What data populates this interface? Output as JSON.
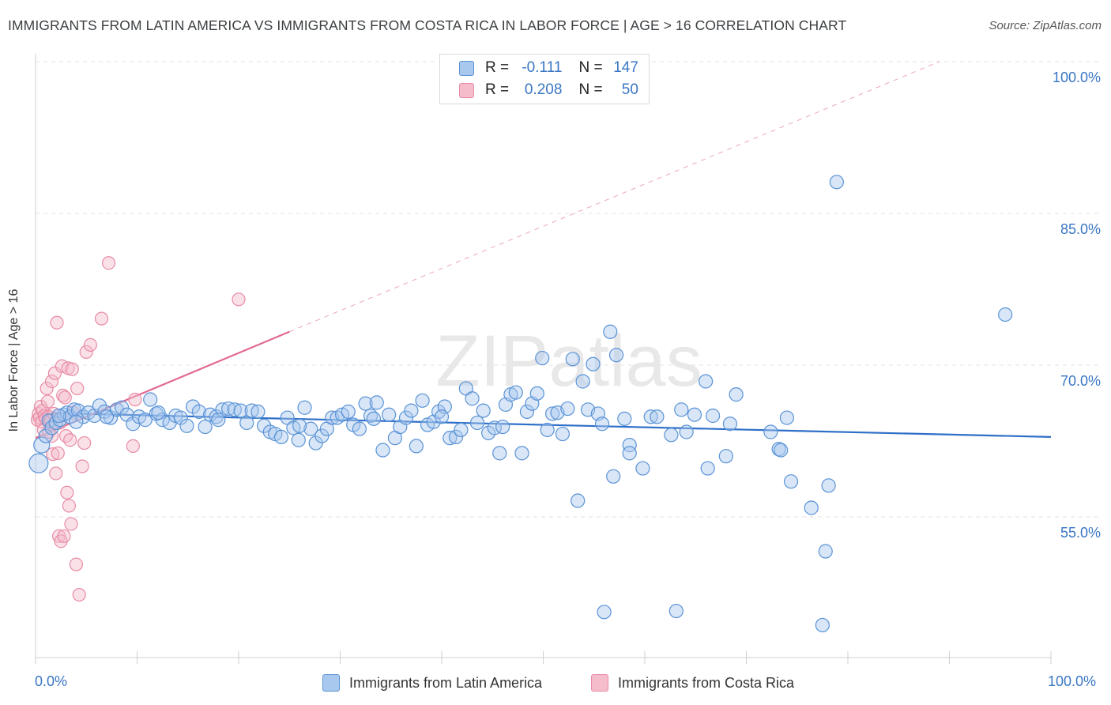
{
  "title": "IMMIGRANTS FROM LATIN AMERICA VS IMMIGRANTS FROM COSTA RICA IN LABOR FORCE | AGE > 16 CORRELATION CHART",
  "source": "Source: ZipAtlas.com",
  "watermark": "ZIPatlas",
  "colors": {
    "blue_fill": "#a9c8ee",
    "blue_stroke": "#5a93d6",
    "blue_line": "#2f6fc8",
    "pink_fill": "#f5bccb",
    "pink_stroke": "#e88ba4",
    "pink_line": "#e06a90",
    "axis_text": "#3a76c4",
    "grid": "#e3e3e3"
  },
  "legend": {
    "series1": {
      "r_label": "R =",
      "r_value": "-0.111",
      "n_label": "N =",
      "n_value": "147"
    },
    "series2": {
      "r_label": "R =",
      "r_value": "0.208",
      "n_label": "N =",
      "n_value": "50"
    }
  },
  "chart_data": {
    "type": "scatter",
    "title": "IMMIGRANTS FROM LATIN AMERICA VS IMMIGRANTS FROM COSTA RICA IN LABOR FORCE | AGE > 16 CORRELATION CHART",
    "xlabel": "",
    "ylabel": "In Labor Force | Age > 16",
    "xlim": [
      0,
      100
    ],
    "ylim": [
      40,
      102
    ],
    "x_tick_labels": [
      "0.0%",
      "100.0%"
    ],
    "y_ticks": [
      55,
      70,
      85,
      100
    ],
    "y_tick_labels": [
      "55.0%",
      "70.0%",
      "85.0%",
      "100.0%"
    ],
    "grid": true,
    "series": [
      {
        "name": "Immigrants from Latin America",
        "color": "blue",
        "trend": {
          "x": [
            0,
            100
          ],
          "y": [
            65.3,
            62.9
          ],
          "dashed_extension": false
        },
        "points": [
          [
            0.3,
            60.3
          ],
          [
            0.6,
            62.1
          ],
          [
            1.0,
            63.0
          ],
          [
            1.3,
            64.5
          ],
          [
            1.6,
            63.8
          ],
          [
            2.0,
            64.3
          ],
          [
            2.4,
            64.6
          ],
          [
            2.8,
            65.1
          ],
          [
            3.1,
            65.3
          ],
          [
            3.4,
            64.9
          ],
          [
            3.8,
            65.6
          ],
          [
            4.2,
            65.5
          ],
          [
            4.7,
            64.9
          ],
          [
            5.2,
            65.3
          ],
          [
            5.8,
            65.0
          ],
          [
            6.3,
            66.0
          ],
          [
            6.8,
            65.4
          ],
          [
            7.4,
            64.8
          ],
          [
            8.0,
            65.6
          ],
          [
            8.5,
            65.8
          ],
          [
            9.0,
            65.1
          ],
          [
            9.6,
            64.2
          ],
          [
            10.2,
            64.9
          ],
          [
            10.8,
            64.6
          ],
          [
            11.3,
            66.6
          ],
          [
            11.9,
            65.2
          ],
          [
            12.5,
            64.6
          ],
          [
            13.2,
            64.3
          ],
          [
            13.8,
            65.0
          ],
          [
            14.3,
            64.8
          ],
          [
            14.9,
            64.0
          ],
          [
            15.5,
            65.9
          ],
          [
            16.1,
            65.4
          ],
          [
            16.7,
            63.9
          ],
          [
            17.2,
            65.1
          ],
          [
            17.8,
            64.9
          ],
          [
            18.4,
            65.6
          ],
          [
            19.0,
            65.7
          ],
          [
            19.6,
            65.6
          ],
          [
            20.2,
            65.5
          ],
          [
            20.8,
            64.3
          ],
          [
            21.3,
            65.5
          ],
          [
            21.9,
            65.4
          ],
          [
            22.5,
            64.0
          ],
          [
            23.1,
            63.4
          ],
          [
            23.6,
            63.2
          ],
          [
            24.2,
            62.9
          ],
          [
            24.8,
            64.8
          ],
          [
            25.4,
            63.8
          ],
          [
            25.9,
            62.6
          ],
          [
            26.5,
            65.8
          ],
          [
            27.1,
            63.7
          ],
          [
            27.6,
            62.3
          ],
          [
            28.2,
            63.0
          ],
          [
            28.7,
            63.7
          ],
          [
            29.2,
            64.8
          ],
          [
            29.7,
            64.8
          ],
          [
            30.2,
            65.1
          ],
          [
            30.8,
            65.4
          ],
          [
            31.3,
            64.1
          ],
          [
            31.9,
            63.7
          ],
          [
            32.5,
            66.2
          ],
          [
            33.0,
            65.0
          ],
          [
            33.6,
            66.3
          ],
          [
            34.2,
            61.6
          ],
          [
            34.8,
            65.1
          ],
          [
            35.4,
            62.8
          ],
          [
            35.9,
            63.9
          ],
          [
            36.5,
            64.8
          ],
          [
            37.0,
            65.5
          ],
          [
            37.5,
            62.0
          ],
          [
            38.1,
            66.5
          ],
          [
            38.6,
            64.1
          ],
          [
            39.2,
            64.4
          ],
          [
            39.7,
            65.4
          ],
          [
            40.3,
            65.9
          ],
          [
            40.8,
            62.8
          ],
          [
            41.4,
            62.9
          ],
          [
            41.9,
            63.6
          ],
          [
            42.4,
            67.7
          ],
          [
            43.0,
            66.7
          ],
          [
            43.5,
            64.3
          ],
          [
            44.1,
            65.5
          ],
          [
            44.6,
            63.3
          ],
          [
            45.2,
            63.8
          ],
          [
            45.7,
            61.3
          ],
          [
            46.3,
            66.1
          ],
          [
            46.8,
            67.1
          ],
          [
            47.3,
            67.3
          ],
          [
            47.9,
            61.3
          ],
          [
            48.4,
            65.4
          ],
          [
            48.9,
            66.2
          ],
          [
            49.4,
            67.2
          ],
          [
            49.9,
            70.7
          ],
          [
            50.4,
            63.6
          ],
          [
            50.9,
            65.2
          ],
          [
            51.4,
            65.3
          ],
          [
            51.9,
            63.2
          ],
          [
            52.4,
            65.7
          ],
          [
            52.9,
            70.6
          ],
          [
            53.4,
            56.6
          ],
          [
            53.9,
            68.4
          ],
          [
            54.4,
            65.6
          ],
          [
            54.9,
            70.1
          ],
          [
            55.4,
            65.2
          ],
          [
            56.0,
            45.6
          ],
          [
            56.6,
            73.3
          ],
          [
            56.9,
            59.0
          ],
          [
            57.2,
            71.0
          ],
          [
            58.0,
            64.7
          ],
          [
            58.5,
            62.1
          ],
          [
            58.5,
            61.3
          ],
          [
            59.8,
            59.8
          ],
          [
            60.6,
            64.9
          ],
          [
            61.2,
            64.9
          ],
          [
            62.6,
            63.1
          ],
          [
            63.1,
            45.7
          ],
          [
            63.6,
            65.6
          ],
          [
            64.1,
            63.4
          ],
          [
            64.9,
            65.1
          ],
          [
            66.0,
            68.4
          ],
          [
            66.2,
            59.8
          ],
          [
            66.7,
            65.0
          ],
          [
            68.0,
            61.0
          ],
          [
            68.4,
            64.2
          ],
          [
            69.0,
            67.1
          ],
          [
            72.4,
            63.4
          ],
          [
            73.2,
            61.7
          ],
          [
            73.4,
            61.6
          ],
          [
            74.0,
            64.8
          ],
          [
            74.4,
            58.5
          ],
          [
            76.4,
            55.9
          ],
          [
            77.5,
            44.3
          ],
          [
            77.8,
            51.6
          ],
          [
            78.1,
            58.1
          ],
          [
            78.9,
            88.1
          ],
          [
            95.5,
            75.0
          ],
          [
            2.3,
            65.0
          ],
          [
            4.0,
            64.4
          ],
          [
            7.0,
            64.9
          ],
          [
            12.1,
            65.3
          ],
          [
            18.0,
            64.6
          ],
          [
            26.0,
            64.0
          ],
          [
            33.3,
            64.7
          ],
          [
            40.0,
            64.9
          ],
          [
            46.0,
            63.9
          ],
          [
            55.8,
            64.2
          ]
        ]
      },
      {
        "name": "Immigrants from Costa Rica",
        "color": "pink",
        "trend": {
          "x": [
            0,
            25
          ],
          "y": [
            62.8,
            73.3
          ],
          "dashed_extension": true,
          "dashed_to": [
            89,
            100
          ]
        },
        "points": [
          [
            0.2,
            64.6
          ],
          [
            0.3,
            65.2
          ],
          [
            0.4,
            64.8
          ],
          [
            0.5,
            65.9
          ],
          [
            0.6,
            64.4
          ],
          [
            0.7,
            65.5
          ],
          [
            0.8,
            63.6
          ],
          [
            0.9,
            65.0
          ],
          [
            1.0,
            64.7
          ],
          [
            1.1,
            67.7
          ],
          [
            1.2,
            66.4
          ],
          [
            1.3,
            64.9
          ],
          [
            1.4,
            64.4
          ],
          [
            1.5,
            64.5
          ],
          [
            1.6,
            68.4
          ],
          [
            1.6,
            63.0
          ],
          [
            1.7,
            61.2
          ],
          [
            1.8,
            65.2
          ],
          [
            1.9,
            69.2
          ],
          [
            2.0,
            59.3
          ],
          [
            2.1,
            74.2
          ],
          [
            2.2,
            61.3
          ],
          [
            2.3,
            53.1
          ],
          [
            2.4,
            64.3
          ],
          [
            2.5,
            52.6
          ],
          [
            2.6,
            69.9
          ],
          [
            2.7,
            67.0
          ],
          [
            2.8,
            53.1
          ],
          [
            2.9,
            66.8
          ],
          [
            3.0,
            63.0
          ],
          [
            3.1,
            57.4
          ],
          [
            3.2,
            69.7
          ],
          [
            3.3,
            56.1
          ],
          [
            3.4,
            62.6
          ],
          [
            3.5,
            54.3
          ],
          [
            3.6,
            69.6
          ],
          [
            3.7,
            65.3
          ],
          [
            4.0,
            50.3
          ],
          [
            4.1,
            67.7
          ],
          [
            4.3,
            47.3
          ],
          [
            4.6,
            60.0
          ],
          [
            4.8,
            62.3
          ],
          [
            5.0,
            71.3
          ],
          [
            5.4,
            72.0
          ],
          [
            6.5,
            74.6
          ],
          [
            7.2,
            80.1
          ],
          [
            9.6,
            62.0
          ],
          [
            9.8,
            66.6
          ],
          [
            20.0,
            76.5
          ],
          [
            1.3,
            63.4
          ]
        ]
      }
    ]
  },
  "bottom_legend": {
    "series1": "Immigrants from Latin America",
    "series2": "Immigrants from Costa Rica"
  }
}
